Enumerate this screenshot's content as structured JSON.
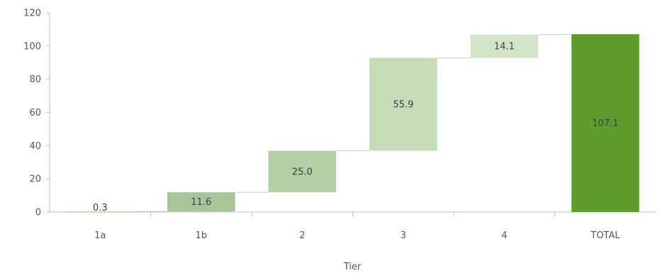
{
  "chart_data": {
    "type": "bar",
    "subtype": "waterfall",
    "title": "",
    "xlabel": "Tier",
    "ylabel": "",
    "ylim": [
      0,
      120
    ],
    "yticks": [
      0,
      20,
      40,
      60,
      80,
      100,
      120
    ],
    "grid": false,
    "categories": [
      "1a",
      "1b",
      "2",
      "3",
      "4",
      "TOTAL"
    ],
    "values": [
      0.3,
      11.6,
      25.0,
      55.9,
      14.1,
      107.1
    ],
    "labels": [
      "0.3",
      "11.6",
      "25.0",
      "55.9",
      "14.1",
      "107.1"
    ],
    "is_total": [
      false,
      false,
      false,
      false,
      false,
      true
    ],
    "colors": [
      "#a8c59a",
      "#a8c59a",
      "#b3cfa6",
      "#c5dcb9",
      "#d3e4c9",
      "#5e9c2e"
    ]
  }
}
